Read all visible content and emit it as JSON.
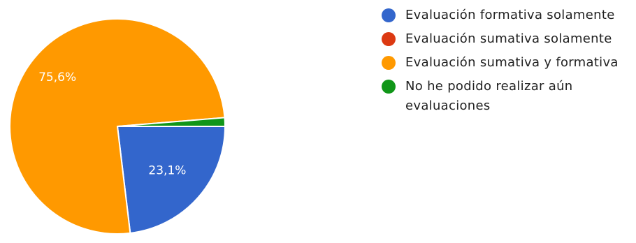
{
  "chart_data": {
    "type": "pie",
    "slices": [
      {
        "label": "Evaluación formativa solamente",
        "value": 23.1,
        "display_label": "23,1%",
        "color": "#3366cc"
      },
      {
        "label": "Evaluación sumativa solamente",
        "value": 0.0,
        "display_label": "",
        "color": "#dc3912"
      },
      {
        "label": "Evaluación sumativa y formativa",
        "value": 75.6,
        "display_label": "75,6%",
        "color": "#ff9900"
      },
      {
        "label": "No he podido realizar aún evaluaciones",
        "value": 1.3,
        "display_label": "",
        "color": "#109618"
      }
    ],
    "legend_position": "right"
  }
}
